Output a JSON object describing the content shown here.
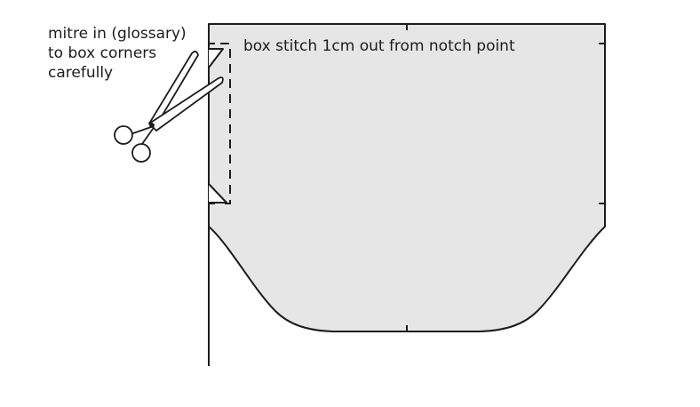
{
  "annotations": {
    "mitre_note": {
      "line1": "mitre in (glossary)",
      "line2": "to box corners",
      "line3": "carefully"
    },
    "box_stitch_note": "box stitch 1cm out from notch point"
  },
  "icons": {
    "scissors": "scissors-icon"
  },
  "colors": {
    "fabric_fill": "#e6e6e6",
    "outline": "#1c1c1c",
    "background": "#ffffff"
  }
}
